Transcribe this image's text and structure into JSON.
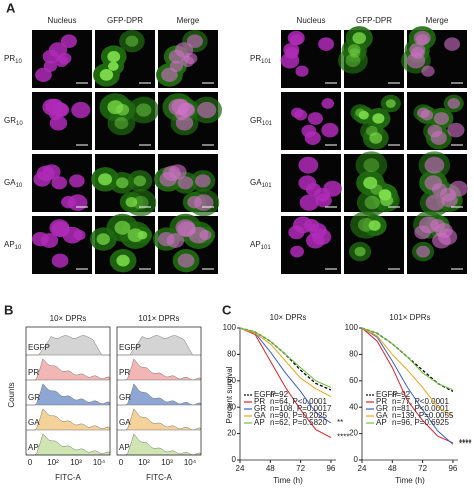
{
  "panel_a": {
    "letter": "A",
    "columns": [
      "Nucleus",
      "GFP-DPR",
      "Merge"
    ],
    "left_rows": [
      {
        "name": "PR",
        "sub": "10"
      },
      {
        "name": "GR",
        "sub": "10"
      },
      {
        "name": "GA",
        "sub": "10"
      },
      {
        "name": "AP",
        "sub": "10"
      }
    ],
    "right_rows": [
      {
        "name": "PR",
        "sub": "101"
      },
      {
        "name": "GR",
        "sub": "101"
      },
      {
        "name": "GA",
        "sub": "101"
      },
      {
        "name": "AP",
        "sub": "101"
      }
    ]
  },
  "panel_b": {
    "letter": "B",
    "titles": [
      "10× DPRs",
      "101× DPRs"
    ],
    "rows": [
      "EGFP",
      "PR",
      "GR",
      "GA",
      "AP"
    ],
    "ylabel": "Counts",
    "xlabel": "FITC-A",
    "xticks": [
      "0",
      "10²",
      "10³",
      "10⁴"
    ]
  },
  "panel_c": {
    "letter": "C"
  },
  "chart_data": [
    {
      "type": "line",
      "title": "10× DPRs",
      "xlabel": "Time (h)",
      "ylabel": "Percent survival",
      "x": [
        24,
        36,
        48,
        60,
        72,
        84,
        96
      ],
      "xlim": [
        24,
        100
      ],
      "xticks": [
        24,
        48,
        72,
        96
      ],
      "ylim": [
        0,
        100
      ],
      "yticks": [
        0,
        20,
        40,
        60,
        80,
        100
      ],
      "series": [
        {
          "name": "EGFP",
          "stats": "n=92",
          "color": "#111111",
          "dash": true,
          "values": [
            100,
            97,
            90,
            80,
            68,
            58,
            53
          ]
        },
        {
          "name": "PR",
          "stats": "n=64, P<0.0001",
          "color": "#e0202a",
          "mark": "****",
          "values": [
            100,
            95,
            75,
            55,
            38,
            23,
            17
          ]
        },
        {
          "name": "GR",
          "stats": "n=108, P=0.0017",
          "color": "#3a5fc8",
          "mark": "**",
          "values": [
            100,
            96,
            82,
            66,
            52,
            36,
            28
          ]
        },
        {
          "name": "GA",
          "stats": "n=90, P=0.2025",
          "color": "#e8a81c",
          "values": [
            100,
            96,
            88,
            75,
            62,
            54,
            48
          ]
        },
        {
          "name": "AP",
          "stats": "n=62, P=0.5820",
          "color": "#6cc040",
          "values": [
            100,
            97,
            90,
            80,
            70,
            60,
            55
          ]
        }
      ]
    },
    {
      "type": "line",
      "title": "101× DPRs",
      "xlabel": "Time (h)",
      "ylabel": "Percent survival",
      "x": [
        24,
        36,
        48,
        60,
        72,
        84,
        96
      ],
      "xlim": [
        24,
        100
      ],
      "xticks": [
        24,
        48,
        72,
        96
      ],
      "ylim": [
        0,
        100
      ],
      "yticks": [
        0,
        20,
        40,
        60,
        80,
        100
      ],
      "series": [
        {
          "name": "EGFP",
          "stats": "n=92",
          "color": "#111111",
          "dash": true,
          "values": [
            100,
            96,
            88,
            78,
            68,
            58,
            52
          ]
        },
        {
          "name": "PR",
          "stats": "n=77, P<0.0001",
          "color": "#e0202a",
          "mark": "****",
          "values": [
            100,
            90,
            70,
            45,
            30,
            18,
            13
          ]
        },
        {
          "name": "GR",
          "stats": "n=81, P<0.0001",
          "color": "#3a5fc8",
          "mark": "****",
          "values": [
            100,
            93,
            75,
            55,
            38,
            22,
            12
          ]
        },
        {
          "name": "GA",
          "stats": "n=139, P=0.0055",
          "color": "#e8a81c",
          "values": [
            100,
            94,
            80,
            68,
            55,
            40,
            33
          ]
        },
        {
          "name": "AP",
          "stats": "n=96, P=0.6925",
          "color": "#6cc040",
          "values": [
            100,
            96,
            88,
            78,
            66,
            58,
            53
          ]
        }
      ]
    }
  ]
}
